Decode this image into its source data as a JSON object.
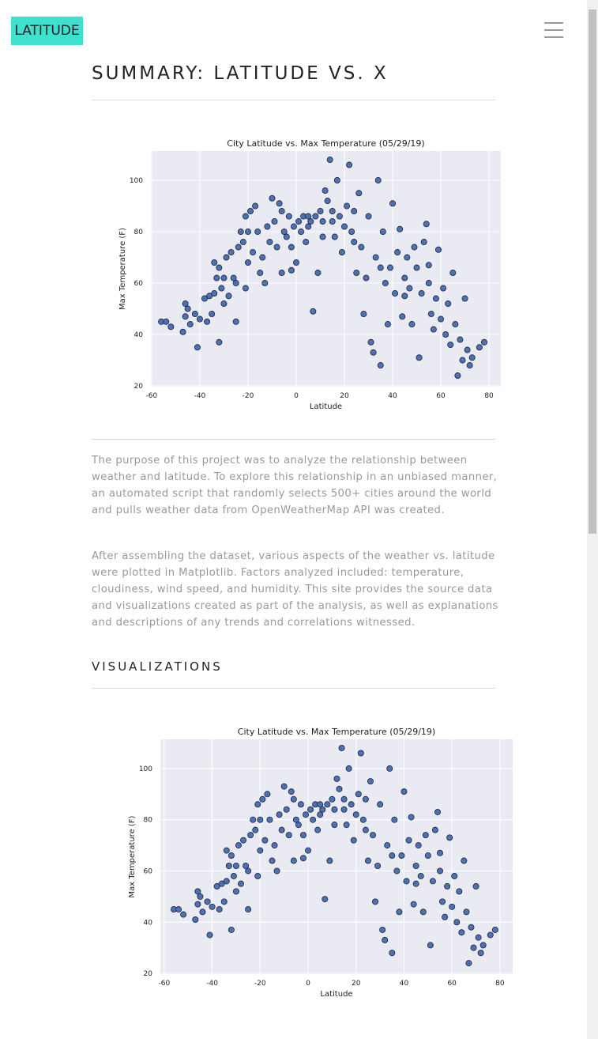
{
  "nav": {
    "brand": "LATITUDE"
  },
  "header": {
    "title": "SUMMARY: LATITUDE VS. X"
  },
  "paragraphs": [
    "The purpose of this project was to analyze the relationship between weather and latitude. To explore this relationship in an unbiased manner, an automated script that randomly selects 500+ cities around the world and pulls weather data from OpenWeatherMap API was created.",
    "After assembling the dataset, various aspects of the weather vs. latitude were plotted in Matplotlib. Factors analyzed included: temperature, cloudiness, wind speed, and humidity. This site provides the source data and visualizations created as part of the analysis, as well as explanations and descriptions of any trends and correlations witnessed."
  ],
  "section": {
    "title": "VISUALIZATIONS"
  },
  "chart_data": [
    {
      "type": "scatter",
      "title": "City Latitude vs. Max Temperature (05/29/19)",
      "x_label": "Latitude",
      "y_label": "Max Temperature (F)",
      "color": "#4c72b0",
      "edge_color": "#1c2440",
      "background": "#eaeaf2",
      "grid": true,
      "xlim": [
        -60.3,
        84.9
      ],
      "ylim": [
        19.7,
        111.4
      ],
      "xticks": [
        -60,
        -40,
        -20,
        0,
        20,
        40,
        60,
        80
      ],
      "yticks": [
        20,
        40,
        60,
        80,
        100
      ],
      "x": [
        -56,
        -54,
        -52,
        -47,
        -46,
        -46,
        -45,
        -44,
        -42,
        -41,
        -40,
        -38,
        -37,
        -36,
        -35,
        -34,
        -34,
        -33,
        -32,
        -32,
        -31,
        -30,
        -30,
        -29,
        -28,
        -27,
        -26,
        -25,
        -25,
        -24,
        -23,
        -22,
        -21,
        -21,
        -20,
        -19,
        -18,
        -17,
        -16,
        -15,
        -14,
        -13,
        -12,
        -11,
        -10,
        -9,
        -8,
        -7,
        -6,
        -6,
        -5,
        -4,
        -3,
        -2,
        -2,
        -1,
        0,
        1,
        2,
        3,
        4,
        5,
        6,
        7,
        8,
        9,
        10,
        11,
        12,
        13,
        14,
        15,
        16,
        17,
        18,
        19,
        20,
        21,
        22,
        23,
        24,
        25,
        26,
        27,
        28,
        29,
        30,
        31,
        32,
        33,
        34,
        35,
        36,
        37,
        38,
        39,
        40,
        41,
        42,
        43,
        44,
        45,
        46,
        47,
        48,
        49,
        50,
        51,
        52,
        53,
        54,
        55,
        56,
        57,
        58,
        59,
        60,
        61,
        62,
        63,
        64,
        65,
        66,
        67,
        68,
        69,
        70,
        71,
        72,
        73,
        76,
        78,
        11,
        15,
        24,
        35,
        45,
        55,
        -20,
        5
      ],
      "y": [
        45,
        45,
        43,
        41,
        47,
        52,
        50,
        44,
        48,
        35,
        46,
        54,
        45,
        55,
        48,
        56,
        68,
        62,
        37,
        66,
        58,
        62,
        52,
        70,
        55,
        72,
        62,
        45,
        60,
        74,
        80,
        76,
        86,
        58,
        68,
        88,
        72,
        90,
        80,
        64,
        70,
        60,
        82,
        76,
        93,
        84,
        74,
        91,
        88,
        64,
        80,
        78,
        86,
        65,
        74,
        82,
        68,
        84,
        80,
        86,
        76,
        82,
        84,
        49,
        86,
        64,
        88,
        78,
        96,
        92,
        108,
        84,
        78,
        100,
        86,
        72,
        82,
        90,
        106,
        80,
        88,
        64,
        95,
        74,
        48,
        62,
        86,
        37,
        33,
        70,
        100,
        28,
        80,
        60,
        44,
        66,
        91,
        56,
        72,
        81,
        47,
        62,
        70,
        58,
        44,
        74,
        66,
        31,
        56,
        76,
        83,
        60,
        48,
        42,
        54,
        73,
        46,
        58,
        40,
        52,
        36,
        64,
        44,
        24,
        38,
        30,
        54,
        34,
        28,
        31,
        35,
        37,
        84,
        88,
        76,
        66,
        55,
        67,
        80,
        86
      ]
    },
    {
      "type": "scatter",
      "title": "City Latitude vs. Max Temperature (05/29/19)",
      "x_label": "Latitude",
      "y_label": "Max Temperature (F)",
      "color": "#4c72b0",
      "edge_color": "#1c2440",
      "background": "#eaeaf2",
      "grid": true,
      "xlim": [
        -61.6,
        85.3
      ],
      "ylim": [
        19.7,
        111.4
      ],
      "xticks": [
        -60,
        -40,
        -20,
        0,
        20,
        40,
        60,
        80
      ],
      "yticks": [
        20,
        40,
        60,
        80,
        100
      ],
      "x": [
        -56,
        -54,
        -52,
        -47,
        -46,
        -46,
        -45,
        -44,
        -42,
        -41,
        -40,
        -38,
        -37,
        -36,
        -35,
        -34,
        -34,
        -33,
        -32,
        -32,
        -31,
        -30,
        -30,
        -29,
        -28,
        -27,
        -26,
        -25,
        -25,
        -24,
        -23,
        -22,
        -21,
        -21,
        -20,
        -19,
        -18,
        -17,
        -16,
        -15,
        -14,
        -13,
        -12,
        -11,
        -10,
        -9,
        -8,
        -7,
        -6,
        -6,
        -5,
        -4,
        -3,
        -2,
        -2,
        -1,
        0,
        1,
        2,
        3,
        4,
        5,
        6,
        7,
        8,
        9,
        10,
        11,
        12,
        13,
        14,
        15,
        16,
        17,
        18,
        19,
        20,
        21,
        22,
        23,
        24,
        25,
        26,
        27,
        28,
        29,
        30,
        31,
        32,
        33,
        34,
        35,
        36,
        37,
        38,
        39,
        40,
        41,
        42,
        43,
        44,
        45,
        46,
        47,
        48,
        49,
        50,
        51,
        52,
        53,
        54,
        55,
        56,
        57,
        58,
        59,
        60,
        61,
        62,
        63,
        64,
        65,
        66,
        67,
        68,
        69,
        70,
        71,
        72,
        73,
        76,
        78,
        11,
        15,
        24,
        35,
        45,
        55,
        -20,
        5
      ],
      "y": [
        45,
        45,
        43,
        41,
        47,
        52,
        50,
        44,
        48,
        35,
        46,
        54,
        45,
        55,
        48,
        56,
        68,
        62,
        37,
        66,
        58,
        62,
        52,
        70,
        55,
        72,
        62,
        45,
        60,
        74,
        80,
        76,
        86,
        58,
        68,
        88,
        72,
        90,
        80,
        64,
        70,
        60,
        82,
        76,
        93,
        84,
        74,
        91,
        88,
        64,
        80,
        78,
        86,
        65,
        74,
        82,
        68,
        84,
        80,
        86,
        76,
        82,
        84,
        49,
        86,
        64,
        88,
        78,
        96,
        92,
        108,
        84,
        78,
        100,
        86,
        72,
        82,
        90,
        106,
        80,
        88,
        64,
        95,
        74,
        48,
        62,
        86,
        37,
        33,
        70,
        100,
        28,
        80,
        60,
        44,
        66,
        91,
        56,
        72,
        81,
        47,
        62,
        70,
        58,
        44,
        74,
        66,
        31,
        56,
        76,
        83,
        60,
        48,
        42,
        54,
        73,
        46,
        58,
        40,
        52,
        36,
        64,
        44,
        24,
        38,
        30,
        54,
        34,
        28,
        31,
        35,
        37,
        84,
        88,
        76,
        66,
        55,
        67,
        80,
        86
      ]
    }
  ]
}
